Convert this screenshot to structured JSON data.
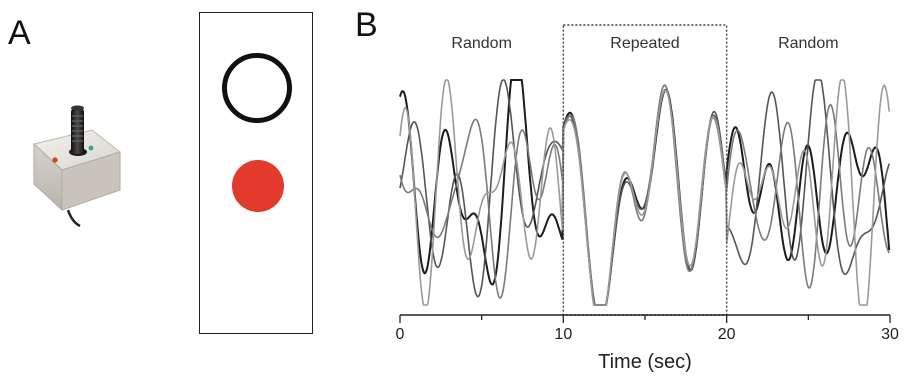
{
  "figure": {
    "panel_a_label": "A",
    "panel_b_label": "B",
    "panel_a": {
      "joystick_icon": "joystick-icon",
      "target_color": "#111111",
      "cursor_color": "#e23a2c"
    }
  },
  "chart_data": {
    "type": "line",
    "title": "",
    "xlabel": "Time (sec)",
    "ylabel": "",
    "xlim": [
      0,
      30
    ],
    "xticks": [
      0,
      10,
      20,
      30
    ],
    "grid": false,
    "segments": [
      {
        "label": "Random",
        "start": 0,
        "end": 10
      },
      {
        "label": "Repeated",
        "start": 10,
        "end": 20
      },
      {
        "label": "Random",
        "start": 20,
        "end": 30
      }
    ],
    "repeated_box": [
      10,
      20
    ],
    "series_colors": [
      "#1c1c1c",
      "#555555",
      "#7a7a7a",
      "#9a9a9a"
    ]
  }
}
